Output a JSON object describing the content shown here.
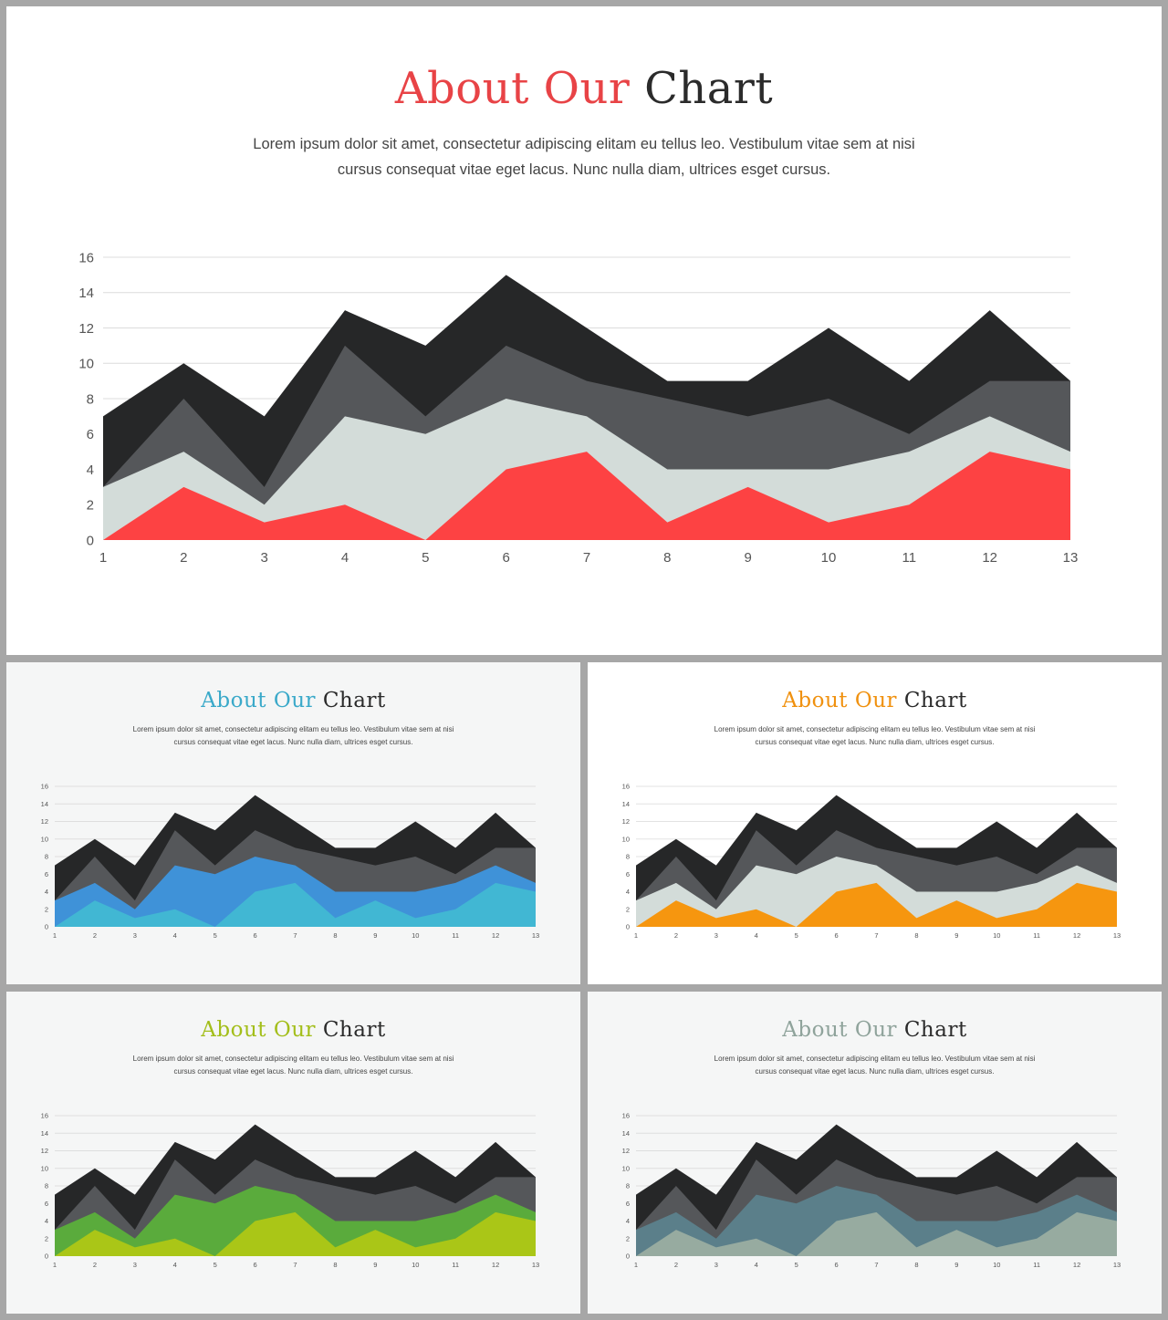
{
  "chart_data": [
    {
      "type": "area",
      "title": "About Our Chart",
      "subtitle": "Lorem ipsum dolor sit amet, consectetur adipiscing elitam eu tellus leo. Vestibulum vitae sem at nisi cursus consequat vitae eget lacus. Nunc nulla diam, ultrices esget cursus.",
      "x": [
        1,
        2,
        3,
        4,
        5,
        6,
        7,
        8,
        9,
        10,
        11,
        12,
        13
      ],
      "yticks": [
        0,
        2,
        4,
        6,
        8,
        10,
        12,
        14,
        16
      ],
      "ylim": [
        0,
        16
      ],
      "grid": true,
      "series": [
        {
          "values": [
            7,
            10,
            7,
            13,
            11,
            15,
            12,
            9,
            9,
            12,
            9,
            13,
            9
          ],
          "color": "#262728"
        },
        {
          "values": [
            3,
            8,
            3,
            11,
            7,
            11,
            9,
            8,
            7,
            8,
            6,
            9,
            9
          ],
          "color": "#55575a"
        },
        {
          "values": [
            3,
            5,
            2,
            7,
            6,
            8,
            7,
            4,
            4,
            4,
            5,
            7,
            5
          ],
          "color": "#d3dcd9"
        },
        {
          "values": [
            0,
            3,
            1,
            2,
            0,
            4,
            5,
            1,
            3,
            1,
            2,
            5,
            4
          ],
          "color": "#fd4243"
        }
      ]
    },
    {
      "type": "area",
      "title": "About Our Chart",
      "subtitle": "Lorem ipsum dolor sit amet, consectetur adipiscing elitam eu tellus leo. Vestibulum vitae sem at nisi cursus consequat vitae eget lacus. Nunc nulla diam, ultrices esget cursus.",
      "x": [
        1,
        2,
        3,
        4,
        5,
        6,
        7,
        8,
        9,
        10,
        11,
        12,
        13
      ],
      "yticks": [
        0,
        2,
        4,
        6,
        8,
        10,
        12,
        14,
        16
      ],
      "ylim": [
        0,
        16
      ],
      "grid": true,
      "series": [
        {
          "values": [
            7,
            10,
            7,
            13,
            11,
            15,
            12,
            9,
            9,
            12,
            9,
            13,
            9
          ],
          "color": "#262728"
        },
        {
          "values": [
            3,
            8,
            3,
            11,
            7,
            11,
            9,
            8,
            7,
            8,
            6,
            9,
            9
          ],
          "color": "#55575a"
        },
        {
          "values": [
            3,
            5,
            2,
            7,
            6,
            8,
            7,
            4,
            4,
            4,
            5,
            7,
            5
          ],
          "color": "#3f92d8"
        },
        {
          "values": [
            0,
            3,
            1,
            2,
            0,
            4,
            5,
            1,
            3,
            1,
            2,
            5,
            4
          ],
          "color": "#41b7d3"
        }
      ]
    },
    {
      "type": "area",
      "title": "About Our Chart",
      "subtitle": "Lorem ipsum dolor sit amet, consectetur adipiscing elitam eu tellus leo. Vestibulum vitae sem at nisi cursus consequat vitae eget lacus. Nunc nulla diam, ultrices esget cursus.",
      "x": [
        1,
        2,
        3,
        4,
        5,
        6,
        7,
        8,
        9,
        10,
        11,
        12,
        13
      ],
      "yticks": [
        0,
        2,
        4,
        6,
        8,
        10,
        12,
        14,
        16
      ],
      "ylim": [
        0,
        16
      ],
      "grid": true,
      "series": [
        {
          "values": [
            7,
            10,
            7,
            13,
            11,
            15,
            12,
            9,
            9,
            12,
            9,
            13,
            9
          ],
          "color": "#262728"
        },
        {
          "values": [
            3,
            8,
            3,
            11,
            7,
            11,
            9,
            8,
            7,
            8,
            6,
            9,
            9
          ],
          "color": "#55575a"
        },
        {
          "values": [
            3,
            5,
            2,
            7,
            6,
            8,
            7,
            4,
            4,
            4,
            5,
            7,
            5
          ],
          "color": "#d3dcd9"
        },
        {
          "values": [
            0,
            3,
            1,
            2,
            0,
            4,
            5,
            1,
            3,
            1,
            2,
            5,
            4
          ],
          "color": "#f6960f"
        }
      ]
    },
    {
      "type": "area",
      "title": "About Our Chart",
      "subtitle": "Lorem ipsum dolor sit amet, consectetur adipiscing elitam eu tellus leo. Vestibulum vitae sem at nisi cursus consequat vitae eget lacus. Nunc nulla diam, ultrices esget cursus.",
      "x": [
        1,
        2,
        3,
        4,
        5,
        6,
        7,
        8,
        9,
        10,
        11,
        12,
        13
      ],
      "yticks": [
        0,
        2,
        4,
        6,
        8,
        10,
        12,
        14,
        16
      ],
      "ylim": [
        0,
        16
      ],
      "grid": true,
      "series": [
        {
          "values": [
            7,
            10,
            7,
            13,
            11,
            15,
            12,
            9,
            9,
            12,
            9,
            13,
            9
          ],
          "color": "#262728"
        },
        {
          "values": [
            3,
            8,
            3,
            11,
            7,
            11,
            9,
            8,
            7,
            8,
            6,
            9,
            9
          ],
          "color": "#55575a"
        },
        {
          "values": [
            3,
            5,
            2,
            7,
            6,
            8,
            7,
            4,
            4,
            4,
            5,
            7,
            5
          ],
          "color": "#5aab3c"
        },
        {
          "values": [
            0,
            3,
            1,
            2,
            0,
            4,
            5,
            1,
            3,
            1,
            2,
            5,
            4
          ],
          "color": "#aac617"
        }
      ]
    },
    {
      "type": "area",
      "title": "About Our Chart",
      "subtitle": "Lorem ipsum dolor sit amet, consectetur adipiscing elitam eu tellus leo. Vestibulum vitae sem at nisi cursus consequat vitae eget lacus. Nunc nulla diam, ultrices esget cursus.",
      "x": [
        1,
        2,
        3,
        4,
        5,
        6,
        7,
        8,
        9,
        10,
        11,
        12,
        13
      ],
      "yticks": [
        0,
        2,
        4,
        6,
        8,
        10,
        12,
        14,
        16
      ],
      "ylim": [
        0,
        16
      ],
      "grid": true,
      "series": [
        {
          "values": [
            7,
            10,
            7,
            13,
            11,
            15,
            12,
            9,
            9,
            12,
            9,
            13,
            9
          ],
          "color": "#262728"
        },
        {
          "values": [
            3,
            8,
            3,
            11,
            7,
            11,
            9,
            8,
            7,
            8,
            6,
            9,
            9
          ],
          "color": "#55575a"
        },
        {
          "values": [
            3,
            5,
            2,
            7,
            6,
            8,
            7,
            4,
            4,
            4,
            5,
            7,
            5
          ],
          "color": "#5b7f8a"
        },
        {
          "values": [
            0,
            3,
            1,
            2,
            0,
            4,
            5,
            1,
            3,
            1,
            2,
            5,
            4
          ],
          "color": "#97aba0"
        }
      ]
    }
  ],
  "slides": {
    "main": {
      "title_accent": "About Our",
      "title_rest": "Chart",
      "accent_color": "#e84346",
      "background": "#ffffff",
      "desc_line1": "Lorem ipsum dolor sit amet, consectetur adipiscing elitam eu tellus leo. Vestibulum vitae sem at nisi",
      "desc_line2": "cursus consequat vitae eget lacus. Nunc nulla diam, ultrices esget cursus."
    },
    "blue": {
      "title_accent": "About Our",
      "title_rest": "Chart",
      "accent_color": "#3aa9c9",
      "background": "#f5f6f6",
      "desc_line1": "Lorem ipsum dolor sit amet, consectetur adipiscing elitam eu tellus leo. Vestibulum vitae sem at nisi",
      "desc_line2": "cursus consequat vitae eget lacus. Nunc nulla diam, ultrices esget cursus."
    },
    "orange": {
      "title_accent": "About Our",
      "title_rest": "Chart",
      "accent_color": "#f0910f",
      "background": "#ffffff",
      "desc_line1": "Lorem ipsum dolor sit amet, consectetur adipiscing elitam eu tellus leo. Vestibulum vitae sem at nisi",
      "desc_line2": "cursus consequat vitae eget lacus. Nunc nulla diam, ultrices esget cursus."
    },
    "green": {
      "title_accent": "About Our",
      "title_rest": "Chart",
      "accent_color": "#a3be1a",
      "background": "#f5f6f6",
      "desc_line1": "Lorem ipsum dolor sit amet, consectetur adipiscing elitam eu tellus leo. Vestibulum vitae sem at nisi",
      "desc_line2": "cursus consequat vitae eget lacus. Nunc nulla diam, ultrices esget cursus."
    },
    "grey": {
      "title_accent": "About Our",
      "title_rest": "Chart",
      "accent_color": "#8fa39b",
      "background": "#f5f6f6",
      "desc_line1": "Lorem ipsum dolor sit amet, consectetur adipiscing elitam eu tellus leo. Vestibulum vitae sem at nisi",
      "desc_line2": "cursus consequat vitae eget lacus. Nunc nulla diam, ultrices esget cursus."
    }
  }
}
